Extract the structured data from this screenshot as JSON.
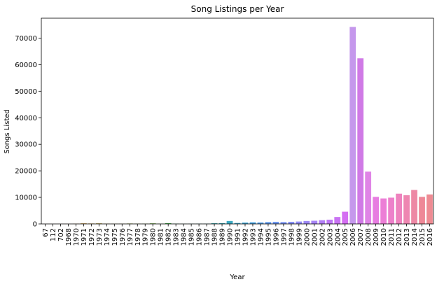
{
  "chart_data": {
    "type": "bar",
    "title": "Song Listings per Year",
    "xlabel": "Year",
    "ylabel": "Songs Listed",
    "ylim": [
      0,
      77500
    ],
    "yticks": [
      0,
      10000,
      20000,
      30000,
      40000,
      50000,
      60000,
      70000
    ],
    "grid": false,
    "legend": "none",
    "categories": [
      "67",
      "112",
      "702",
      "1968",
      "1970",
      "1971",
      "1972",
      "1973",
      "1974",
      "1975",
      "1976",
      "1977",
      "1978",
      "1979",
      "1980",
      "1981",
      "1982",
      "1983",
      "1984",
      "1985",
      "1986",
      "1987",
      "1988",
      "1989",
      "1990",
      "1991",
      "1992",
      "1993",
      "1994",
      "1995",
      "1996",
      "1997",
      "1998",
      "1999",
      "2000",
      "2001",
      "2002",
      "2003",
      "2004",
      "2005",
      "2006",
      "2007",
      "2008",
      "2009",
      "2010",
      "2011",
      "2012",
      "2013",
      "2014",
      "2015",
      "2016"
    ],
    "values": [
      10,
      10,
      10,
      10,
      50,
      200,
      150,
      200,
      80,
      60,
      60,
      150,
      80,
      80,
      200,
      60,
      250,
      80,
      50,
      60,
      80,
      80,
      250,
      300,
      1100,
      350,
      500,
      600,
      550,
      700,
      800,
      700,
      800,
      900,
      1100,
      1200,
      1400,
      1600,
      2600,
      4600,
      74200,
      62400,
      19700,
      10200,
      9600,
      9900,
      11400,
      10800,
      12800,
      10200,
      11100
    ],
    "colors": [
      "#f45e6b",
      "#f0634f",
      "#e47130",
      "#d7791f",
      "#cc7f1e",
      "#c28520",
      "#b78921",
      "#ab8d22",
      "#a39023",
      "#9a9424",
      "#8f9825",
      "#859a26",
      "#799d27",
      "#6ca128",
      "#5da32a",
      "#4aa62c",
      "#36a93f",
      "#33a966",
      "#33a97a",
      "#34a98a",
      "#35a998",
      "#36a9a4",
      "#37a9ae",
      "#38a9b8",
      "#39a8c1",
      "#3aa6cb",
      "#3ca4d3",
      "#43a1de",
      "#529de5",
      "#609aea",
      "#6d97ee",
      "#7993f1",
      "#858ff4",
      "#918bf5",
      "#9c87f5",
      "#a683f5",
      "#b27ef5",
      "#be78f4",
      "#c973f3",
      "#d46ef2",
      "#c598ec",
      "#d07ae6",
      "#df84e6",
      "#e77de1",
      "#ec7ed6",
      "#ed80ca",
      "#ee82be",
      "#ee86b1",
      "#ed88a5",
      "#ee8897",
      "#ee8b93"
    ]
  }
}
